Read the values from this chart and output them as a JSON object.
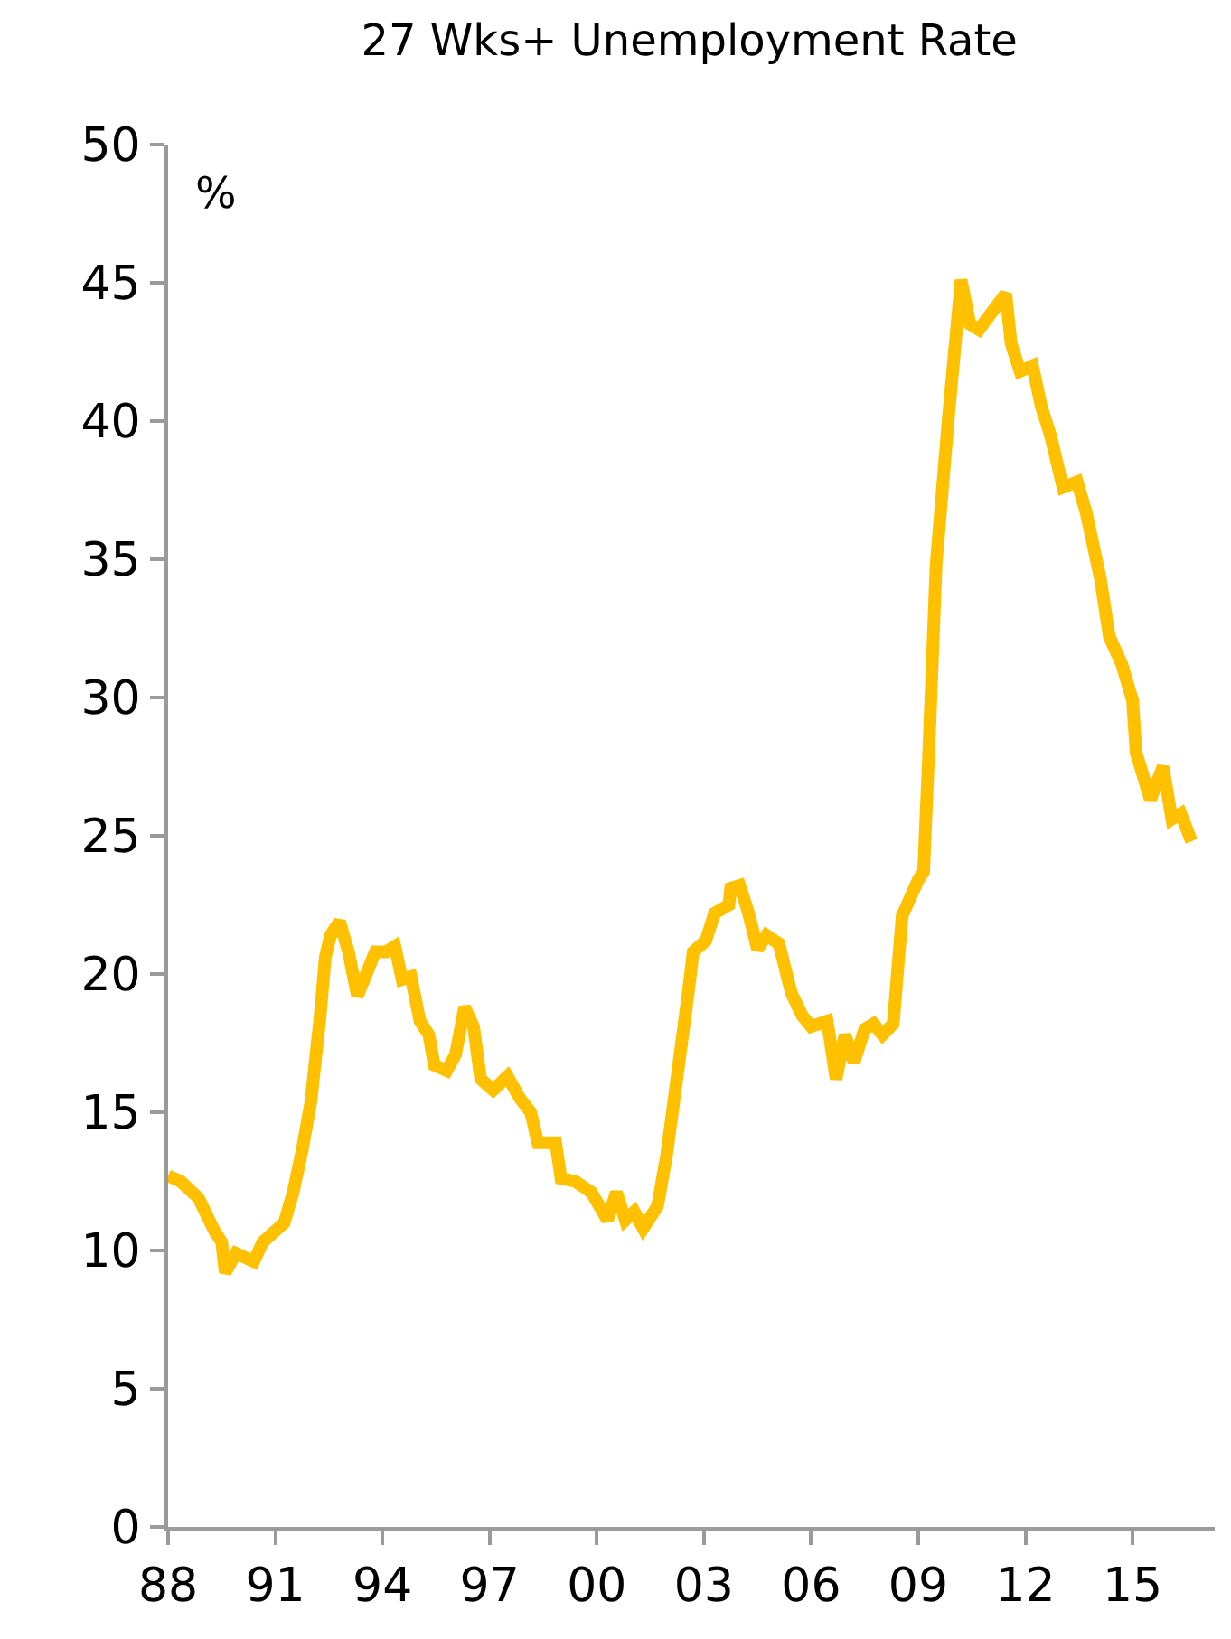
{
  "chart_data": {
    "type": "line",
    "title": "27 Wks+ Unemployment Rate",
    "ylabel": "%",
    "x": [
      1988.0,
      1988.35,
      1988.85,
      1989.3,
      1989.5,
      1989.6,
      1989.9,
      1990.4,
      1990.65,
      1991.25,
      1991.5,
      1991.75,
      1992.0,
      1992.25,
      1992.4,
      1992.55,
      1992.8,
      1993.05,
      1993.3,
      1993.8,
      1994.1,
      1994.35,
      1994.55,
      1994.8,
      1995.05,
      1995.3,
      1995.45,
      1995.8,
      1996.05,
      1996.3,
      1996.55,
      1996.75,
      1997.1,
      1997.5,
      1997.85,
      1998.15,
      1998.35,
      1998.85,
      1999.0,
      1999.4,
      1999.85,
      2000.3,
      2000.55,
      2000.8,
      2001.05,
      2001.3,
      2001.7,
      2001.95,
      2002.2,
      2002.55,
      2002.7,
      2003.05,
      2003.3,
      2003.7,
      2003.75,
      2004.0,
      2004.25,
      2004.5,
      2004.75,
      2005.1,
      2005.45,
      2005.75,
      2006.0,
      2006.45,
      2006.7,
      2006.95,
      2007.2,
      2007.5,
      2007.75,
      2008.0,
      2008.3,
      2008.55,
      2009.0,
      2009.15,
      2009.3,
      2009.5,
      2009.85,
      2010.2,
      2010.45,
      2010.7,
      2011.1,
      2011.45,
      2011.6,
      2011.85,
      2012.2,
      2012.45,
      2012.7,
      2013.05,
      2013.45,
      2013.7,
      2014.1,
      2014.35,
      2014.7,
      2015.0,
      2015.1,
      2015.5,
      2015.85,
      2016.1,
      2016.35,
      2016.65
    ],
    "series": [
      {
        "color": "#ffc000",
        "values": [
          12.7,
          12.5,
          11.9,
          10.7,
          10.3,
          9.2,
          9.9,
          9.6,
          10.3,
          11.0,
          12.1,
          13.6,
          15.4,
          18.4,
          20.6,
          21.4,
          21.9,
          20.8,
          19.2,
          20.8,
          20.8,
          21.0,
          19.8,
          19.9,
          18.3,
          17.8,
          16.7,
          16.5,
          17.1,
          18.8,
          18.1,
          16.2,
          15.8,
          16.3,
          15.5,
          15.0,
          13.9,
          13.9,
          12.6,
          12.5,
          12.1,
          11.1,
          12.1,
          11.1,
          11.4,
          10.8,
          11.6,
          13.4,
          15.8,
          19.2,
          20.8,
          21.2,
          22.2,
          22.5,
          23.1,
          23.2,
          22.2,
          20.9,
          21.4,
          21.1,
          19.3,
          18.5,
          18.1,
          18.3,
          16.2,
          17.8,
          16.8,
          18.0,
          18.2,
          17.8,
          18.2,
          22.1,
          23.4,
          23.7,
          28.2,
          34.8,
          40.2,
          45.1,
          43.5,
          43.3,
          44.0,
          44.6,
          42.8,
          41.8,
          42.0,
          40.5,
          39.5,
          37.6,
          37.8,
          36.7,
          34.3,
          32.2,
          31.2,
          29.9,
          28.0,
          26.3,
          27.5,
          25.6,
          25.8,
          24.8
        ]
      }
    ],
    "xlim": [
      1988,
      2017.3
    ],
    "xticks": [
      {
        "value": 1988,
        "label": "88"
      },
      {
        "value": 1991,
        "label": "91"
      },
      {
        "value": 1994,
        "label": "94"
      },
      {
        "value": 1997,
        "label": "97"
      },
      {
        "value": 2000,
        "label": "00"
      },
      {
        "value": 2003,
        "label": "03"
      },
      {
        "value": 2006,
        "label": "06"
      },
      {
        "value": 2009,
        "label": "09"
      },
      {
        "value": 2012,
        "label": "12"
      },
      {
        "value": 2015,
        "label": "15"
      }
    ],
    "ylim": [
      0,
      50
    ],
    "yticks": [
      0,
      5,
      10,
      15,
      20,
      25,
      30,
      35,
      40,
      45,
      50
    ],
    "marker": "none",
    "line_style": "solid"
  }
}
